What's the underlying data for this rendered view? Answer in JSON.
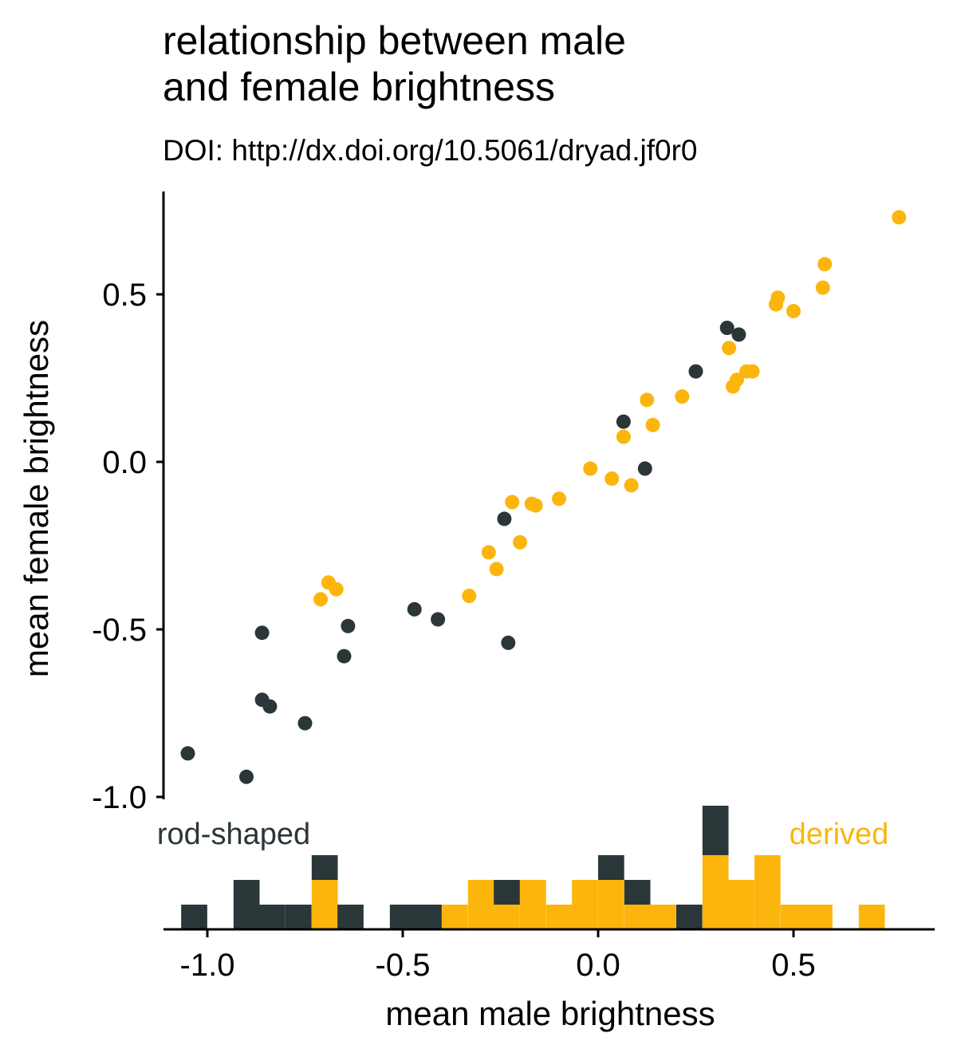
{
  "chart_data": {
    "type": "scatter",
    "title_lines": [
      "relationship between male",
      "and female brightness"
    ],
    "subtitle": "DOI: http://dx.doi.org/10.5061/dryad.jf0r0",
    "xlabel": "mean male brightness",
    "ylabel": "mean female brightness",
    "xlim": [
      -1.12,
      0.85
    ],
    "ylim": [
      -1.0,
      0.8
    ],
    "x_ticks": [
      -1.0,
      -0.5,
      0.0,
      0.5
    ],
    "x_tick_labels": [
      "-1.0",
      "-0.5",
      "0.0",
      "0.5"
    ],
    "y_ticks": [
      -1.0,
      -0.5,
      0.0,
      0.5
    ],
    "y_tick_labels": [
      "-1.0",
      "-0.5",
      "0.0",
      "0.5"
    ],
    "colors": {
      "rod-shaped": "#2b3639",
      "derived": "#fcb50d"
    },
    "series": [
      {
        "name": "rod-shaped",
        "points": [
          [
            -1.05,
            -0.87
          ],
          [
            -0.9,
            -0.94
          ],
          [
            -0.86,
            -0.51
          ],
          [
            -0.86,
            -0.71
          ],
          [
            -0.84,
            -0.73
          ],
          [
            -0.75,
            -0.78
          ],
          [
            -0.65,
            -0.58
          ],
          [
            -0.64,
            -0.49
          ],
          [
            -0.47,
            -0.44
          ],
          [
            -0.41,
            -0.47
          ],
          [
            -0.24,
            -0.17
          ],
          [
            -0.23,
            -0.54
          ],
          [
            0.065,
            0.12
          ],
          [
            0.12,
            -0.02
          ],
          [
            0.25,
            0.27
          ],
          [
            0.33,
            0.4
          ],
          [
            0.36,
            0.38
          ]
        ]
      },
      {
        "name": "derived",
        "points": [
          [
            -0.71,
            -0.41
          ],
          [
            -0.69,
            -0.36
          ],
          [
            -0.67,
            -0.38
          ],
          [
            -0.33,
            -0.4
          ],
          [
            -0.28,
            -0.27
          ],
          [
            -0.26,
            -0.32
          ],
          [
            -0.22,
            -0.12
          ],
          [
            -0.2,
            -0.24
          ],
          [
            -0.17,
            -0.125
          ],
          [
            -0.16,
            -0.13
          ],
          [
            -0.1,
            -0.11
          ],
          [
            -0.02,
            -0.02
          ],
          [
            0.035,
            -0.05
          ],
          [
            0.065,
            0.075
          ],
          [
            0.085,
            -0.07
          ],
          [
            0.125,
            0.185
          ],
          [
            0.14,
            0.11
          ],
          [
            0.215,
            0.195
          ],
          [
            0.335,
            0.34
          ],
          [
            0.345,
            0.225
          ],
          [
            0.355,
            0.245
          ],
          [
            0.38,
            0.27
          ],
          [
            0.395,
            0.27
          ],
          [
            0.455,
            0.47
          ],
          [
            0.46,
            0.49
          ],
          [
            0.5,
            0.45
          ],
          [
            0.575,
            0.52
          ],
          [
            0.58,
            0.59
          ],
          [
            0.77,
            0.73
          ]
        ]
      }
    ],
    "histogram": {
      "bin_width": 0.0667,
      "bins": [
        {
          "start": -1.067,
          "rod": 1,
          "derived": 0
        },
        {
          "start": -0.933,
          "rod": 2,
          "derived": 0
        },
        {
          "start": -0.867,
          "rod": 1,
          "derived": 0
        },
        {
          "start": -0.8,
          "rod": 1,
          "derived": 0
        },
        {
          "start": -0.733,
          "rod": 1,
          "derived": 2
        },
        {
          "start": -0.667,
          "rod": 1,
          "derived": 0
        },
        {
          "start": -0.533,
          "rod": 1,
          "derived": 0
        },
        {
          "start": -0.467,
          "rod": 1,
          "derived": 0
        },
        {
          "start": -0.4,
          "rod": 0,
          "derived": 1
        },
        {
          "start": -0.333,
          "rod": 0,
          "derived": 2
        },
        {
          "start": -0.267,
          "rod": 1,
          "derived": 1
        },
        {
          "start": -0.2,
          "rod": 0,
          "derived": 2
        },
        {
          "start": -0.133,
          "rod": 0,
          "derived": 1
        },
        {
          "start": -0.067,
          "rod": 0,
          "derived": 2
        },
        {
          "start": 0.0,
          "rod": 1,
          "derived": 2
        },
        {
          "start": 0.067,
          "rod": 1,
          "derived": 1
        },
        {
          "start": 0.133,
          "rod": 0,
          "derived": 1
        },
        {
          "start": 0.2,
          "rod": 1,
          "derived": 0
        },
        {
          "start": 0.267,
          "rod": 2,
          "derived": 3
        },
        {
          "start": 0.333,
          "rod": 0,
          "derived": 2
        },
        {
          "start": 0.4,
          "rod": 0,
          "derived": 3
        },
        {
          "start": 0.467,
          "rod": 0,
          "derived": 1
        },
        {
          "start": 0.533,
          "rod": 0,
          "derived": 1
        },
        {
          "start": 0.667,
          "rod": 0,
          "derived": 1
        }
      ]
    },
    "annotations": [
      {
        "text": "rod-shaped",
        "series": "rod-shaped"
      },
      {
        "text": "derived",
        "series": "derived"
      }
    ]
  }
}
